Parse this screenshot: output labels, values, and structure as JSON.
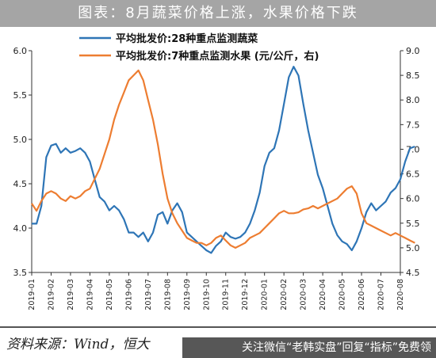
{
  "title": "图表：8月蔬菜价格上涨，水果价格下跌",
  "source": "资料来源：Wind，恒大",
  "watermark": "关注微信“老韩实盘”回复“指标”免费领",
  "chart_data": {
    "type": "line",
    "x": [
      "2019-01",
      "2019-02",
      "2019-03",
      "2019-04",
      "2019-05",
      "2019-06",
      "2019-07",
      "2019-08",
      "2019-09",
      "2019-10",
      "2019-11",
      "2019-12",
      "2020-01",
      "2020-02",
      "2020-03",
      "2020-04",
      "2020-05",
      "2020-06",
      "2020-07",
      "2020-08"
    ],
    "left_axis": {
      "ylim": [
        3.5,
        6.0
      ],
      "ticks": [
        "3.5",
        "4.0",
        "4.5",
        "5.0",
        "5.5",
        "6.0"
      ]
    },
    "right_axis": {
      "ylim": [
        4.5,
        9.0
      ],
      "ticks": [
        "4.5",
        "5.0",
        "5.5",
        "6.0",
        "6.5",
        "7.0",
        "7.5",
        "8.0",
        "8.5",
        "9.0"
      ]
    },
    "legend_placement": "top",
    "grid": false,
    "series": [
      {
        "name": "平均批发价:28种重点监测蔬菜",
        "axis": "left",
        "color": "#2e75b6",
        "points": [
          [
            0.0,
            4.05
          ],
          [
            0.25,
            4.05
          ],
          [
            0.5,
            4.25
          ],
          [
            0.75,
            4.8
          ],
          [
            1.0,
            4.93
          ],
          [
            1.25,
            4.95
          ],
          [
            1.5,
            4.85
          ],
          [
            1.75,
            4.9
          ],
          [
            2.0,
            4.85
          ],
          [
            2.25,
            4.87
          ],
          [
            2.5,
            4.9
          ],
          [
            2.75,
            4.85
          ],
          [
            3.0,
            4.75
          ],
          [
            3.25,
            4.55
          ],
          [
            3.5,
            4.35
          ],
          [
            3.75,
            4.3
          ],
          [
            4.0,
            4.2
          ],
          [
            4.25,
            4.25
          ],
          [
            4.5,
            4.2
          ],
          [
            4.75,
            4.1
          ],
          [
            5.0,
            3.95
          ],
          [
            5.25,
            3.95
          ],
          [
            5.5,
            3.9
          ],
          [
            5.75,
            3.95
          ],
          [
            6.0,
            3.85
          ],
          [
            6.25,
            3.95
          ],
          [
            6.5,
            4.15
          ],
          [
            6.75,
            4.18
          ],
          [
            7.0,
            4.05
          ],
          [
            7.25,
            4.2
          ],
          [
            7.5,
            4.28
          ],
          [
            7.75,
            4.18
          ],
          [
            8.0,
            3.95
          ],
          [
            8.25,
            3.9
          ],
          [
            8.5,
            3.85
          ],
          [
            8.75,
            3.8
          ],
          [
            9.0,
            3.75
          ],
          [
            9.25,
            3.72
          ],
          [
            9.5,
            3.8
          ],
          [
            9.75,
            3.85
          ],
          [
            10.0,
            3.95
          ],
          [
            10.25,
            3.9
          ],
          [
            10.5,
            3.88
          ],
          [
            10.75,
            3.9
          ],
          [
            11.0,
            3.95
          ],
          [
            11.25,
            4.05
          ],
          [
            11.5,
            4.2
          ],
          [
            11.75,
            4.4
          ],
          [
            12.0,
            4.7
          ],
          [
            12.25,
            4.85
          ],
          [
            12.5,
            4.9
          ],
          [
            12.75,
            5.1
          ],
          [
            13.0,
            5.4
          ],
          [
            13.25,
            5.7
          ],
          [
            13.5,
            5.82
          ],
          [
            13.75,
            5.72
          ],
          [
            14.0,
            5.4
          ],
          [
            14.25,
            5.1
          ],
          [
            14.5,
            4.85
          ],
          [
            14.75,
            4.6
          ],
          [
            15.0,
            4.45
          ],
          [
            15.25,
            4.25
          ],
          [
            15.5,
            4.05
          ],
          [
            15.75,
            3.92
          ],
          [
            16.0,
            3.85
          ],
          [
            16.25,
            3.82
          ],
          [
            16.5,
            3.75
          ],
          [
            16.75,
            3.85
          ],
          [
            17.0,
            4.0
          ],
          [
            17.25,
            4.18
          ],
          [
            17.5,
            4.28
          ],
          [
            17.75,
            4.2
          ],
          [
            18.0,
            4.25
          ],
          [
            18.25,
            4.3
          ],
          [
            18.5,
            4.4
          ],
          [
            18.75,
            4.45
          ],
          [
            19.0,
            4.55
          ],
          [
            19.25,
            4.75
          ],
          [
            19.5,
            4.9
          ],
          [
            19.75,
            4.92
          ]
        ]
      },
      {
        "name": "平均批发价:7种重点监测水果 (元/公斤，右)",
        "axis": "right",
        "color": "#ed7d31",
        "points": [
          [
            0.0,
            5.9
          ],
          [
            0.25,
            5.75
          ],
          [
            0.5,
            5.95
          ],
          [
            0.75,
            6.1
          ],
          [
            1.0,
            6.15
          ],
          [
            1.25,
            6.1
          ],
          [
            1.5,
            6.0
          ],
          [
            1.75,
            5.95
          ],
          [
            2.0,
            6.05
          ],
          [
            2.25,
            6.0
          ],
          [
            2.5,
            6.05
          ],
          [
            2.75,
            6.15
          ],
          [
            3.0,
            6.2
          ],
          [
            3.25,
            6.4
          ],
          [
            3.5,
            6.6
          ],
          [
            3.75,
            6.9
          ],
          [
            4.0,
            7.2
          ],
          [
            4.25,
            7.6
          ],
          [
            4.5,
            7.9
          ],
          [
            4.75,
            8.15
          ],
          [
            5.0,
            8.4
          ],
          [
            5.25,
            8.5
          ],
          [
            5.5,
            8.6
          ],
          [
            5.75,
            8.4
          ],
          [
            6.0,
            8.0
          ],
          [
            6.25,
            7.6
          ],
          [
            6.5,
            7.1
          ],
          [
            6.75,
            6.5
          ],
          [
            7.0,
            6.0
          ],
          [
            7.25,
            5.7
          ],
          [
            7.5,
            5.5
          ],
          [
            7.75,
            5.35
          ],
          [
            8.0,
            5.2
          ],
          [
            8.25,
            5.15
          ],
          [
            8.5,
            5.1
          ],
          [
            8.75,
            5.1
          ],
          [
            9.0,
            5.05
          ],
          [
            9.25,
            5.1
          ],
          [
            9.5,
            5.2
          ],
          [
            9.75,
            5.25
          ],
          [
            10.0,
            5.15
          ],
          [
            10.25,
            5.05
          ],
          [
            10.5,
            5.0
          ],
          [
            10.75,
            5.05
          ],
          [
            11.0,
            5.1
          ],
          [
            11.25,
            5.2
          ],
          [
            11.5,
            5.25
          ],
          [
            11.75,
            5.3
          ],
          [
            12.0,
            5.4
          ],
          [
            12.25,
            5.5
          ],
          [
            12.5,
            5.6
          ],
          [
            12.75,
            5.7
          ],
          [
            13.0,
            5.75
          ],
          [
            13.25,
            5.7
          ],
          [
            13.5,
            5.7
          ],
          [
            13.75,
            5.72
          ],
          [
            14.0,
            5.78
          ],
          [
            14.25,
            5.8
          ],
          [
            14.5,
            5.85
          ],
          [
            14.75,
            5.8
          ],
          [
            15.0,
            5.85
          ],
          [
            15.25,
            5.9
          ],
          [
            15.5,
            5.95
          ],
          [
            15.75,
            6.0
          ],
          [
            16.0,
            6.1
          ],
          [
            16.25,
            6.2
          ],
          [
            16.5,
            6.25
          ],
          [
            16.75,
            6.1
          ],
          [
            17.0,
            5.7
          ],
          [
            17.25,
            5.5
          ],
          [
            17.5,
            5.45
          ],
          [
            17.75,
            5.4
          ],
          [
            18.0,
            5.35
          ],
          [
            18.25,
            5.3
          ],
          [
            18.5,
            5.25
          ],
          [
            18.75,
            5.3
          ],
          [
            19.0,
            5.25
          ],
          [
            19.25,
            5.2
          ],
          [
            19.5,
            5.15
          ],
          [
            19.75,
            5.1
          ]
        ]
      }
    ]
  }
}
